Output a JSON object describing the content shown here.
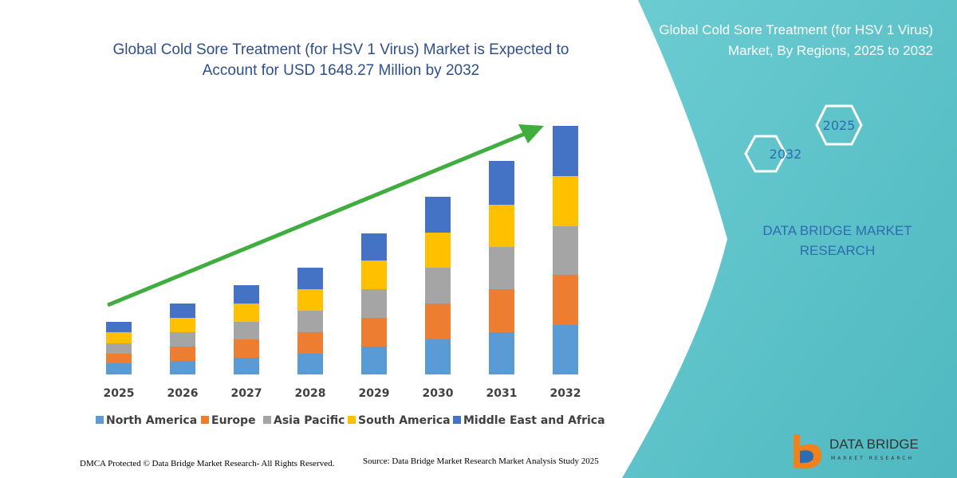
{
  "chart_data": {
    "type": "bar",
    "stacked": true,
    "title": "Global Cold Sore Treatment (for HSV 1 Virus) Market is Expected to Account for USD 1648.27 Million by 2032",
    "categories": [
      "2025",
      "2026",
      "2027",
      "2028",
      "2029",
      "2030",
      "2031",
      "2032"
    ],
    "series": [
      {
        "name": "North America",
        "color": "#5b9bd5",
        "values": [
          14,
          17,
          21,
          26,
          35,
          44,
          53,
          62
        ]
      },
      {
        "name": "Europe",
        "color": "#ed7d31",
        "values": [
          12,
          18,
          23,
          27,
          36,
          45,
          54,
          63
        ]
      },
      {
        "name": "Asia Pacific",
        "color": "#a5a5a5",
        "values": [
          13,
          18,
          22,
          27,
          36,
          45,
          53,
          61
        ]
      },
      {
        "name": "South America",
        "color": "#ffc000",
        "values": [
          14,
          18,
          23,
          27,
          36,
          44,
          53,
          63
        ]
      },
      {
        "name": "Middle East and Africa",
        "color": "#4472c4",
        "values": [
          13,
          18,
          23,
          27,
          34,
          45,
          55,
          63
        ]
      }
    ],
    "legend": "bottom"
  },
  "panel": {
    "title": "Global Cold Sore Treatment (for HSV 1 Virus) Market, By Regions, 2025 to 2032",
    "hex_labels": [
      "2025",
      "2032"
    ],
    "brand": "DATA BRIDGE MARKET RESEARCH"
  },
  "logo": {
    "name": "DATA BRIDGE",
    "tagline": "MARKET RESEARCH"
  },
  "footer": {
    "copyright": "DMCA Protected © Data Bridge Market Research- All Rights Reserved.",
    "source": "Source: Data Bridge Market Research  Market Analysis Study 2025"
  }
}
